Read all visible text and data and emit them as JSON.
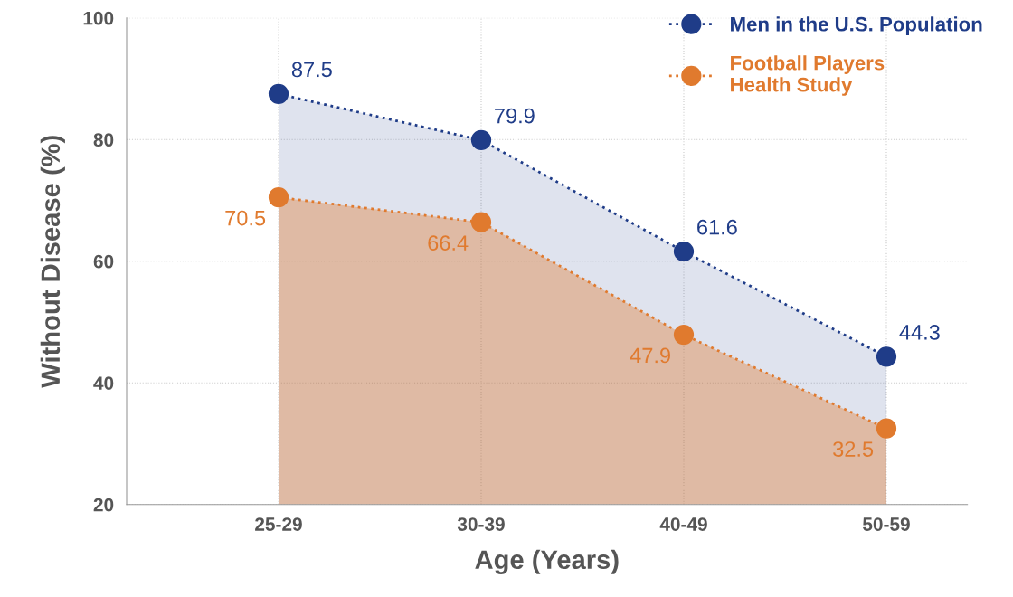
{
  "chart_data": {
    "type": "area",
    "xlabel": "Age (Years)",
    "ylabel": "Without Disease (%)",
    "categories": [
      "25-29",
      "30-39",
      "40-49",
      "50-59"
    ],
    "series": [
      {
        "name": "Men in the U.S. Population",
        "color": "#1f3c88",
        "values": [
          87.5,
          79.9,
          61.6,
          44.3
        ]
      },
      {
        "name": "Football Players\nHealth Study",
        "color": "#e07a2e",
        "values": [
          70.5,
          66.4,
          47.9,
          32.5
        ]
      }
    ],
    "ylim": [
      20,
      100
    ],
    "yticks": [
      20,
      40,
      60,
      80,
      100
    ],
    "grid": true,
    "legend": "top right",
    "marker": "circle",
    "line_style": "dotted",
    "data_labels": true
  }
}
